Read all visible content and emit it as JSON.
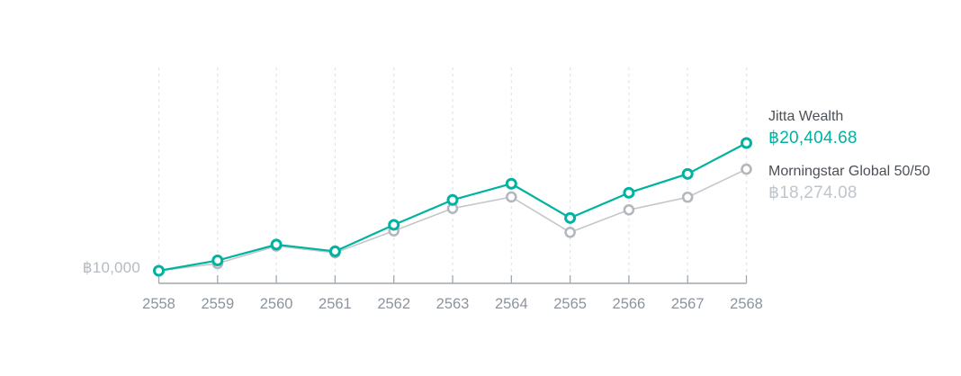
{
  "chart_data": {
    "type": "line",
    "title": "",
    "xlabel": "",
    "ylabel": "",
    "grid": "vertical-dashed",
    "legend_position": "right",
    "categories": [
      "2558",
      "2559",
      "2560",
      "2561",
      "2562",
      "2563",
      "2564",
      "2565",
      "2566",
      "2567",
      "2568"
    ],
    "y_axis": {
      "baseline_label": "฿10,000",
      "baseline_value": 10000,
      "approx_range": [
        10000,
        20404.68
      ]
    },
    "series": [
      {
        "name": "Jitta Wealth",
        "color": "#00b3a0",
        "marker_color": "#00b3a0",
        "values": [
          10000,
          10840,
          12130,
          11580,
          13740,
          15770,
          17090,
          14300,
          16350,
          17890,
          20404.68
        ],
        "final_value_text": "฿20,404.68"
      },
      {
        "name": "Morningstar Global 50/50",
        "color": "#c3c7cb",
        "marker_color": "#b2b8be",
        "values": [
          10000,
          10590,
          12020,
          11470,
          13250,
          15080,
          16010,
          13130,
          14960,
          15990,
          18274.08
        ],
        "final_value_text": "฿18,274.08"
      }
    ]
  },
  "colors": {
    "accent_teal": "#00b3a0",
    "series_gray_line": "#c3c7cb",
    "series_gray_marker": "#b2b8be",
    "gridline": "#e1e3e5",
    "axis": "#a0a7ae",
    "x_label": "#8c949d",
    "baseline_label": "#b5bbc2",
    "legend_name": "#4b5158",
    "legend_value_muted": "#bfc5cb",
    "background": "#ffffff"
  }
}
